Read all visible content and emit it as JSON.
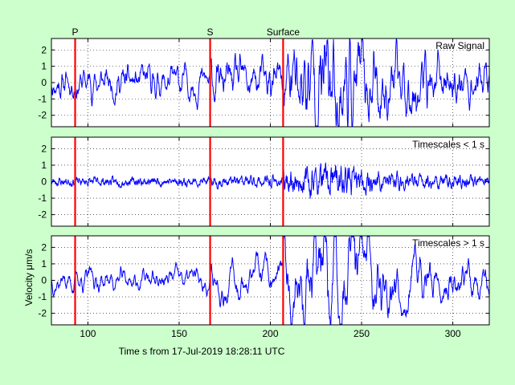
{
  "figure": {
    "background": "#ccffcc",
    "xlabel": "Time s from 17-Jul-2019 18:28:11 UTC",
    "ylabel": "Velocity μm/s"
  },
  "chart_data": {
    "type": "line",
    "xlim": [
      80,
      320
    ],
    "x_ticks": [
      100,
      150,
      200,
      250,
      300
    ],
    "y_ticks": [
      -2,
      -1,
      0,
      1,
      2
    ],
    "grid": true,
    "series_color": "#0000ff",
    "marker_color": "#ff0000",
    "phase_markers": [
      {
        "label": "P",
        "x": 93
      },
      {
        "label": "S",
        "x": 167
      },
      {
        "label": "Surface",
        "x": 207
      }
    ],
    "panels": [
      {
        "title": "Raw Signal",
        "ylim": [
          -2.7,
          2.7
        ],
        "noise": 0.45,
        "quake": 1.2,
        "freq": 0.9,
        "seed": 11
      },
      {
        "title": "Timescales < 1 s",
        "ylim": [
          -2.7,
          2.7
        ],
        "noise": 0.22,
        "quake": 0.55,
        "freq": 2.6,
        "seed": 23
      },
      {
        "title": "Timescales > 1 s",
        "ylim": [
          -2.7,
          2.7
        ],
        "noise": 0.28,
        "quake": 1.05,
        "freq": 0.6,
        "seed": 37
      }
    ]
  }
}
